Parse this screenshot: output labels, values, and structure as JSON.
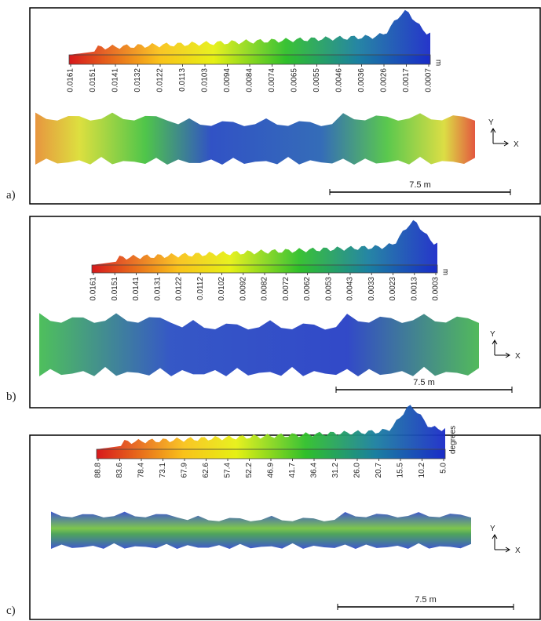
{
  "panels": [
    {
      "label": "a)",
      "colorbar": {
        "ticks": [
          "0.0161",
          "0.0151",
          "0.0141",
          "0.0132",
          "0.0122",
          "0.0113",
          "0.0103",
          "0.0094",
          "0.0084",
          "0.0074",
          "0.0065",
          "0.0055",
          "0.0046",
          "0.0036",
          "0.0026",
          "0.0017",
          "0.0007"
        ],
        "unit": "m"
      },
      "axes": {
        "y": "Y",
        "x": "X"
      },
      "scale_bar": "7.5 m"
    },
    {
      "label": "b)",
      "colorbar": {
        "ticks": [
          "0.0161",
          "0.0151",
          "0.0141",
          "0.0131",
          "0.0122",
          "0.0112",
          "0.0102",
          "0.0092",
          "0.0082",
          "0.0072",
          "0.0062",
          "0.0053",
          "0.0043",
          "0.0033",
          "0.0023",
          "0.0013",
          "0.0003"
        ],
        "unit": "m"
      },
      "axes": {
        "y": "Y",
        "x": "X"
      },
      "scale_bar": "7.5 m"
    },
    {
      "label": "c)",
      "colorbar": {
        "ticks": [
          "88.8",
          "83.6",
          "78.4",
          "73.1",
          "67.9",
          "62.6",
          "57.4",
          "52.2",
          "46.9",
          "41.7",
          "36.4",
          "31.2",
          "26.0",
          "20.7",
          "15.5",
          "10.2",
          "5.0"
        ],
        "unit": "degrees"
      },
      "axes": {
        "y": "Y",
        "x": "X"
      },
      "scale_bar": "7.5 m"
    }
  ]
}
